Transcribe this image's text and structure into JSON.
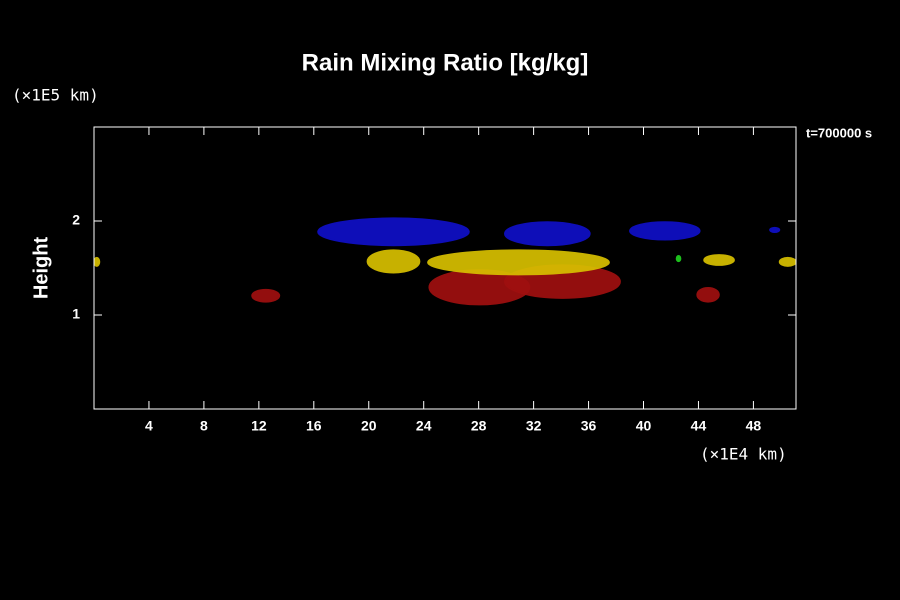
{
  "chart_data": {
    "type": "contour",
    "title": "Rain Mixing Ratio [kg/kg]",
    "ylabel": "Height",
    "y_unit_label": "(×1E5 km)",
    "x_unit_label": "(×1E4 km)",
    "time_label": "t=700000 s",
    "xlim": [
      0,
      51.1
    ],
    "xticks": [
      4,
      8,
      12,
      16,
      20,
      24,
      28,
      32,
      36,
      40,
      44,
      48
    ],
    "ylim": [
      0,
      3
    ],
    "yticks": [
      1,
      2
    ],
    "regions": [
      {
        "color": "#1010c8",
        "x": [
          16.3,
          27.3
        ],
        "y": [
          1.74,
          2.03
        ]
      },
      {
        "color": "#1010c8",
        "x": [
          29.9,
          36.1
        ],
        "y": [
          1.74,
          1.99
        ]
      },
      {
        "color": "#1010c8",
        "x": [
          39.0,
          44.1
        ],
        "y": [
          1.8,
          1.99
        ]
      },
      {
        "color": "#1010c8",
        "x": [
          49.2,
          49.9
        ],
        "y": [
          1.88,
          1.93
        ]
      },
      {
        "color": "#a01010",
        "x": [
          11.5,
          13.5
        ],
        "y": [
          1.14,
          1.27
        ]
      },
      {
        "color": "#a01010",
        "x": [
          24.4,
          31.7
        ],
        "y": [
          1.11,
          1.48
        ]
      },
      {
        "color": "#a01010",
        "x": [
          29.9,
          38.3
        ],
        "y": [
          1.18,
          1.53
        ]
      },
      {
        "color": "#a01010",
        "x": [
          43.9,
          45.5
        ],
        "y": [
          1.14,
          1.29
        ]
      },
      {
        "color": "#d8c000",
        "x": [
          19.9,
          23.7
        ],
        "y": [
          1.45,
          1.69
        ]
      },
      {
        "color": "#d8c000",
        "x": [
          24.3,
          37.5
        ],
        "y": [
          1.43,
          1.69
        ]
      },
      {
        "color": "#d8c000",
        "x": [
          44.4,
          46.6
        ],
        "y": [
          1.53,
          1.64
        ]
      },
      {
        "color": "#d8c000",
        "x": [
          0,
          0.4
        ],
        "y": [
          1.52,
          1.61
        ]
      },
      {
        "color": "#d8c000",
        "x": [
          49.9,
          51.1
        ],
        "y": [
          1.52,
          1.61
        ]
      },
      {
        "color": "#20d020",
        "x": [
          42.4,
          42.7
        ],
        "y": [
          1.57,
          1.63
        ]
      }
    ]
  }
}
